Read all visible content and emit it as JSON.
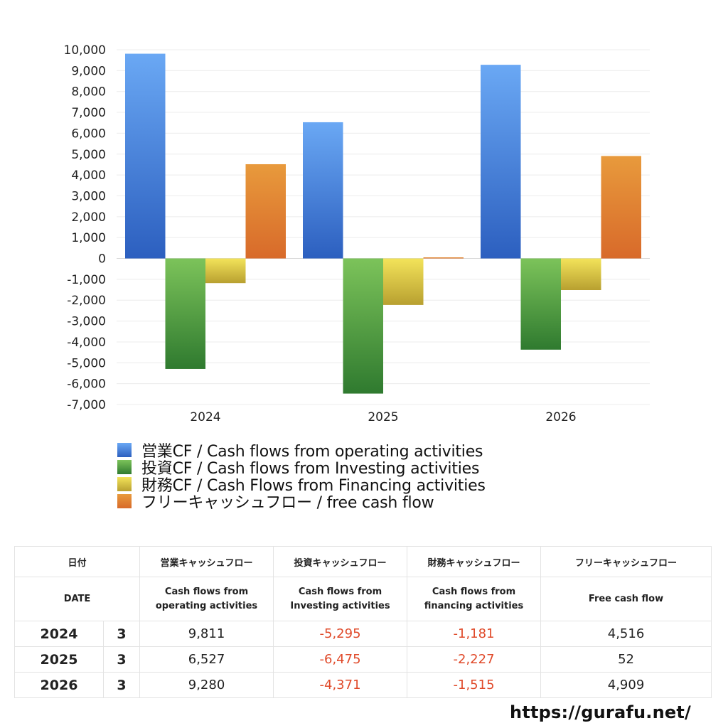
{
  "chart_data": {
    "type": "bar",
    "categories": [
      "2024",
      "2025",
      "2026"
    ],
    "ylim": [
      -7000,
      10000
    ],
    "yticks": [
      10000,
      9000,
      8000,
      7000,
      6000,
      5000,
      4000,
      3000,
      2000,
      1000,
      0,
      -1000,
      -2000,
      -3000,
      -4000,
      -5000,
      -6000,
      -7000
    ],
    "ytick_labels": [
      "10,000",
      "9,000",
      "8,000",
      "7,000",
      "6,000",
      "5,000",
      "4,000",
      "3,000",
      "2,000",
      "1,000",
      "0",
      "-1,000",
      "-2,000",
      "-3,000",
      "-4,000",
      "-5,000",
      "-6,000",
      "-7,000"
    ],
    "grid": true,
    "legend_position": "bottom",
    "series": [
      {
        "name": "営業CF / Cash flows from operating activities",
        "values": [
          9811,
          6527,
          9280
        ],
        "color_top": "#6aa8f4",
        "color_bottom": "#2c5fbf"
      },
      {
        "name": "投資CF / Cash flows from Investing activities",
        "values": [
          -5295,
          -6475,
          -4371
        ],
        "color_top": "#7cc35a",
        "color_bottom": "#2f7a2f"
      },
      {
        "name": "財務CF / Cash Flows from Financing activities",
        "values": [
          -1181,
          -2227,
          -1515
        ],
        "color_top": "#f3e35a",
        "color_bottom": "#b8a030"
      },
      {
        "name": "フリーキャッシュフロー / free cash flow",
        "values": [
          4516,
          52,
          4909
        ],
        "color_top": "#e89a3c",
        "color_bottom": "#d86a2a"
      }
    ]
  },
  "table": {
    "header_jp": [
      "日付",
      "",
      "営業キャッシュフロー",
      "投資キャッシュフロー",
      "財務キャッシュフロー",
      "フリーキャッシュフロー"
    ],
    "header_en": [
      "DATE",
      "",
      "Cash flows from\noperating activities",
      "Cash flows from\nInvesting activities",
      "Cash flows from\nfinancing activities",
      "Free cash flow"
    ],
    "rows": [
      {
        "year": "2024",
        "month": "3",
        "operating": "9,811",
        "investing": "-5,295",
        "financing": "-1,181",
        "free": "4,516"
      },
      {
        "year": "2025",
        "month": "3",
        "operating": "6,527",
        "investing": "-6,475",
        "financing": "-2,227",
        "free": "52"
      },
      {
        "year": "2026",
        "month": "3",
        "operating": "9,280",
        "investing": "-4,371",
        "financing": "-1,515",
        "free": "4,909"
      }
    ]
  },
  "footer": {
    "url": "https://gurafu.net/"
  }
}
